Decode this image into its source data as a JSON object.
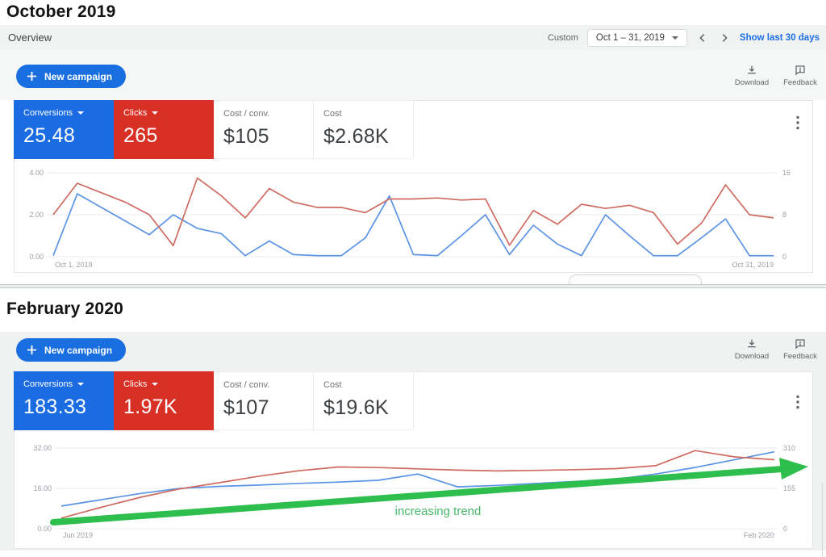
{
  "sections": [
    {
      "title": "October 2019",
      "overview_label": "Overview",
      "date_bar": {
        "custom": "Custom",
        "range": "Oct 1 – 31, 2019",
        "show_last": "Show last 30 days"
      },
      "toolbar": {
        "new_campaign": "New campaign",
        "download": "Download",
        "feedback": "Feedback"
      },
      "metrics": [
        {
          "label": "Conversions",
          "value": "25.48",
          "color": "#1b6ce3"
        },
        {
          "label": "Clicks",
          "value": "265",
          "color": "#d93025"
        },
        {
          "label": "Cost / conv.",
          "value": "$105",
          "color": "#ffffff"
        },
        {
          "label": "Cost",
          "value": "$2.68K",
          "color": "#ffffff"
        }
      ]
    },
    {
      "title": "February 2020",
      "toolbar": {
        "new_campaign": "New campaign",
        "download": "Download",
        "feedback": "Feedback"
      },
      "metrics": [
        {
          "label": "Conversions",
          "value": "183.33",
          "color": "#1b6ce3"
        },
        {
          "label": "Clicks",
          "value": "1.97K",
          "color": "#d93025"
        },
        {
          "label": "Cost / conv.",
          "value": "$107",
          "color": "#ffffff"
        },
        {
          "label": "Cost",
          "value": "$19.6K",
          "color": "#ffffff"
        }
      ]
    }
  ],
  "colors": {
    "card_blue": "#1b6ce3",
    "card_red": "#d93025",
    "line_blue": "#5b93e5",
    "line_red": "#cf6b60",
    "trend_green": "#2dbe4d",
    "link_blue": "#1a6fe8",
    "tick_gray": "#9aa0a6"
  },
  "chart_data": [
    {
      "type": "line",
      "title": "October 2019 daily overview",
      "x": {
        "start_label": "Oct 1, 2019",
        "end_label": "Oct 31, 2019",
        "unit": "day"
      },
      "left_axis": {
        "label": "Conversions",
        "max": 4,
        "ticks": [
          "4.00",
          "2.00",
          "0.00"
        ]
      },
      "right_axis": {
        "label": "Clicks",
        "max": 16,
        "ticks": [
          "16",
          "8",
          "0"
        ]
      },
      "grid": true,
      "legend_position": "none",
      "series": [
        {
          "name": "Conversions",
          "axis": "left",
          "color": "#5b93e5",
          "values": [
            0.05,
            3,
            2.35,
            1.7,
            1.05,
            2,
            1.35,
            1.1,
            0.05,
            0.75,
            0.1,
            0.05,
            0.05,
            0.9,
            2.9,
            0.1,
            0.05,
            1,
            2,
            0.1,
            1.5,
            0.6,
            0.05,
            2,
            1,
            0.05,
            0.05,
            0.9,
            1.8,
            0.05,
            0.05
          ]
        },
        {
          "name": "Clicks",
          "axis": "right",
          "color": "#cf6b60",
          "values": [
            8,
            14,
            12.2,
            10.4,
            8,
            2.1,
            15,
            11.6,
            7.4,
            13,
            10.4,
            9.4,
            9.4,
            8.4,
            11,
            11,
            11.2,
            10.8,
            11,
            2.2,
            8.8,
            6.2,
            10,
            9.2,
            9.8,
            8.4,
            2.4,
            6.4,
            13.7,
            8,
            7.4
          ]
        }
      ]
    },
    {
      "type": "line",
      "title": "Jun 2019 – Feb 2020 trend",
      "x": {
        "start_label": "Jun 2019",
        "end_label": "Feb 2020",
        "unit": "biweekly"
      },
      "left_axis": {
        "label": "Conversions",
        "max": 32,
        "ticks": [
          "32.00",
          "16.00",
          "0.00"
        ]
      },
      "right_axis": {
        "label": "Clicks",
        "max": 310,
        "ticks": [
          "310",
          "155",
          "0"
        ]
      },
      "grid": true,
      "legend_position": "none",
      "series": [
        {
          "name": "Conversions",
          "axis": "left",
          "color": "#5b93e5",
          "values": [
            9,
            11.5,
            14,
            16,
            16.8,
            17.3,
            18,
            18.5,
            19.2,
            21.7,
            16.6,
            17.2,
            18,
            18.8,
            19.6,
            21.7,
            24.3,
            27.4,
            30.5
          ]
        },
        {
          "name": "Clicks",
          "axis": "right",
          "color": "#cf6b60",
          "values": [
            41,
            82,
            121,
            153,
            177,
            202,
            223,
            237,
            235,
            230,
            225,
            222,
            224,
            227,
            231,
            242,
            300,
            276,
            265
          ]
        }
      ],
      "annotation": {
        "type": "trend_arrow",
        "text": "increasing trend",
        "color": "#2dbe4d",
        "text_color": "#47b869"
      }
    }
  ]
}
